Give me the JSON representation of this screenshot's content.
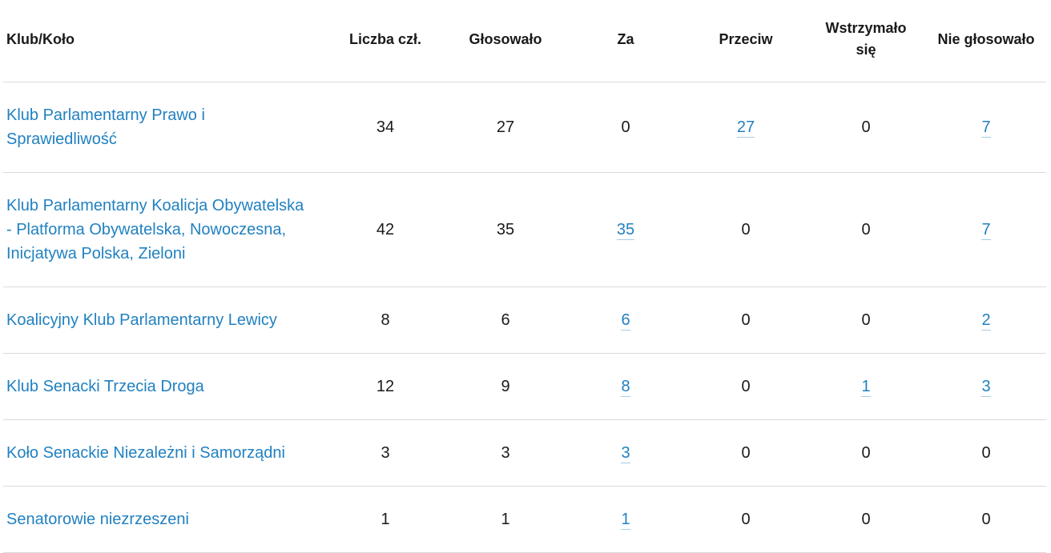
{
  "colors": {
    "accent": "#2181c1",
    "text": "#1a1a1a",
    "divider": "#dadada"
  },
  "table": {
    "columns": [
      "Klub/Koło",
      "Liczba czł.",
      "Głosowało",
      "Za",
      "Przeciw",
      "Wstrzymało się",
      "Nie głosowało"
    ],
    "rows": [
      {
        "club": "Klub Parlamentarny Prawo i Sprawiedliwość",
        "cells": [
          {
            "text": "34",
            "style": "num"
          },
          {
            "text": "27",
            "style": "num"
          },
          {
            "text": "0",
            "style": "num"
          },
          {
            "text": "27",
            "style": "num-link"
          },
          {
            "text": "0",
            "style": "num"
          },
          {
            "text": "7",
            "style": "num-link"
          }
        ]
      },
      {
        "club": "Klub Parlamentarny Koalicja Obywatelska - Platforma Obywatelska, Nowoczesna, Inicjatywa Polska, Zieloni",
        "cells": [
          {
            "text": "42",
            "style": "num"
          },
          {
            "text": "35",
            "style": "num"
          },
          {
            "text": "35",
            "style": "num-link"
          },
          {
            "text": "0",
            "style": "num"
          },
          {
            "text": "0",
            "style": "num"
          },
          {
            "text": "7",
            "style": "num-link"
          }
        ]
      },
      {
        "club": "Koalicyjny Klub Parlamentarny Lewicy",
        "cells": [
          {
            "text": "8",
            "style": "num"
          },
          {
            "text": "6",
            "style": "num"
          },
          {
            "text": "6",
            "style": "num-link"
          },
          {
            "text": "0",
            "style": "num"
          },
          {
            "text": "0",
            "style": "num"
          },
          {
            "text": "2",
            "style": "num-link"
          }
        ]
      },
      {
        "club": "Klub Senacki Trzecia Droga",
        "cells": [
          {
            "text": "12",
            "style": "num"
          },
          {
            "text": "9",
            "style": "num"
          },
          {
            "text": "8",
            "style": "num-link"
          },
          {
            "text": "0",
            "style": "num"
          },
          {
            "text": "1",
            "style": "num-link"
          },
          {
            "text": "3",
            "style": "num-link"
          }
        ]
      },
      {
        "club": "Koło Senackie Niezależni i Samorządni",
        "cells": [
          {
            "text": "3",
            "style": "num"
          },
          {
            "text": "3",
            "style": "num"
          },
          {
            "text": "3",
            "style": "num-link"
          },
          {
            "text": "0",
            "style": "num"
          },
          {
            "text": "0",
            "style": "num"
          },
          {
            "text": "0",
            "style": "num"
          }
        ]
      },
      {
        "club": "Senatorowie niezrzeszeni",
        "cells": [
          {
            "text": "1",
            "style": "num"
          },
          {
            "text": "1",
            "style": "num"
          },
          {
            "text": "1",
            "style": "num-link"
          },
          {
            "text": "0",
            "style": "num"
          },
          {
            "text": "0",
            "style": "num"
          },
          {
            "text": "0",
            "style": "num"
          }
        ]
      }
    ]
  }
}
